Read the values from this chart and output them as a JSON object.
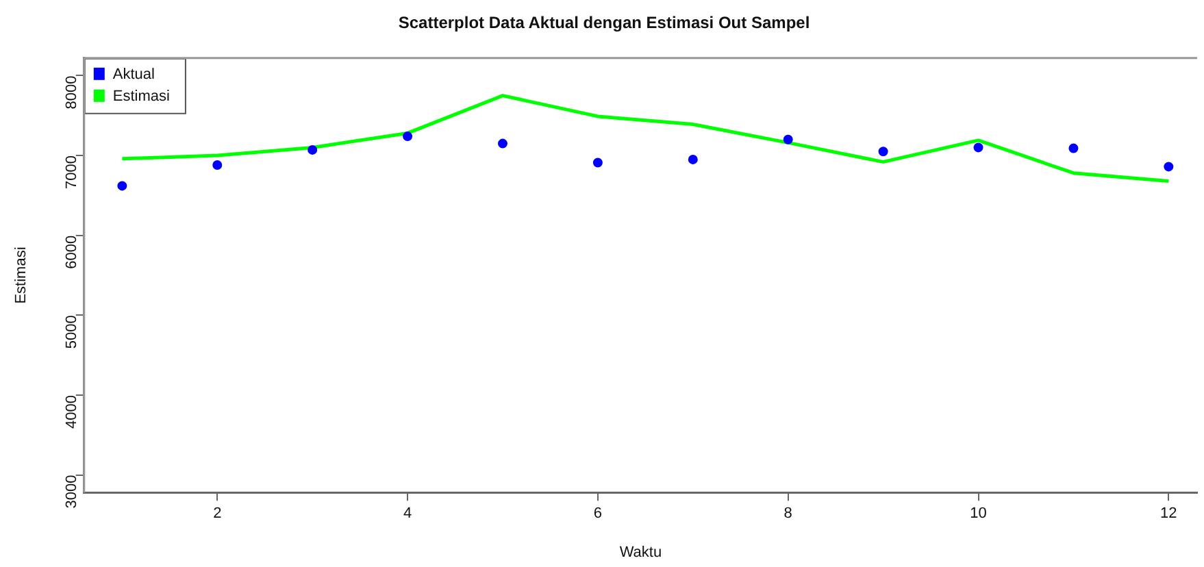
{
  "chart_data": {
    "type": "scatter",
    "title": "Scatterplot Data Aktual dengan Estimasi Out Sampel",
    "xlabel": "Waktu",
    "ylabel": "Estimasi",
    "x": [
      1,
      2,
      3,
      4,
      5,
      6,
      7,
      8,
      9,
      10,
      11,
      12
    ],
    "series": [
      {
        "name": "Aktual",
        "marker": "circle",
        "color": "#0000ff",
        "values": [
          6620,
          6880,
          7070,
          7240,
          7150,
          6910,
          6950,
          7200,
          7050,
          7100,
          7090,
          6860
        ]
      },
      {
        "name": "Estimasi",
        "type": "line",
        "marker": "none",
        "color": "#00ff00",
        "values": [
          6960,
          7000,
          7100,
          7280,
          7750,
          7490,
          7390,
          7160,
          6920,
          7190,
          6780,
          6680
        ]
      }
    ],
    "xlim": [
      0.6,
      12.3
    ],
    "xticks": [
      2,
      4,
      6,
      8,
      10,
      12
    ],
    "ylim": [
      2780,
      8220
    ],
    "yticks": [
      3000,
      4000,
      5000,
      6000,
      7000,
      8000
    ],
    "legend": "top left",
    "grid": false
  }
}
